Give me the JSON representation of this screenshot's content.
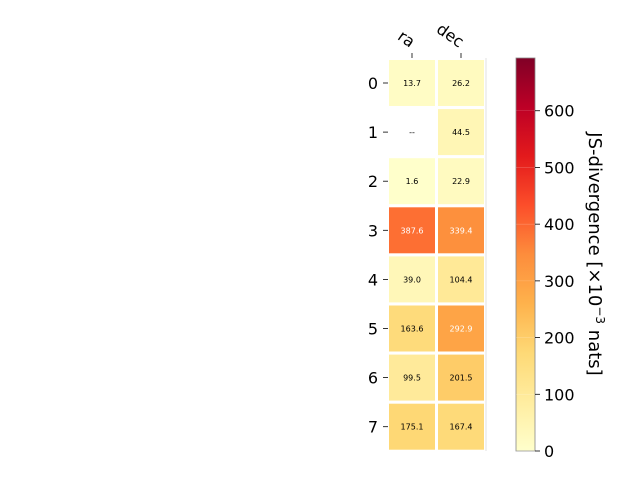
{
  "chart_data": {
    "type": "heatmap",
    "title": "",
    "columns": [
      "ra",
      "dec"
    ],
    "rows": [
      "0",
      "1",
      "2",
      "3",
      "4",
      "5",
      "6",
      "7"
    ],
    "values": [
      [
        13.7,
        26.2
      ],
      [
        null,
        44.5
      ],
      [
        1.6,
        22.9
      ],
      [
        387.6,
        339.4
      ],
      [
        39.0,
        104.4
      ],
      [
        163.6,
        292.9
      ],
      [
        99.5,
        201.5
      ],
      [
        175.1,
        167.4
      ]
    ],
    "cell_labels": [
      [
        "13.7",
        "26.2"
      ],
      [
        "--",
        "44.5"
      ],
      [
        "1.6",
        "22.9"
      ],
      [
        "387.6",
        "339.4"
      ],
      [
        "39.0",
        "104.4"
      ],
      [
        "163.6",
        "292.9"
      ],
      [
        "99.5",
        "201.5"
      ],
      [
        "175.1",
        "167.4"
      ]
    ],
    "colorbar": {
      "label": "JS-divergence [×10⁻³ nats]",
      "label_base": "JS-divergence [×10",
      "label_exp": "−3",
      "label_unit": " nats]",
      "ticks": [
        0,
        100,
        200,
        300,
        400,
        500,
        600
      ],
      "tick_labels": [
        "0",
        "100",
        "200",
        "300",
        "400",
        "500",
        "600"
      ],
      "vmin": 0,
      "vmax": 693,
      "colormap": "YlOrRd"
    },
    "grid": false
  }
}
